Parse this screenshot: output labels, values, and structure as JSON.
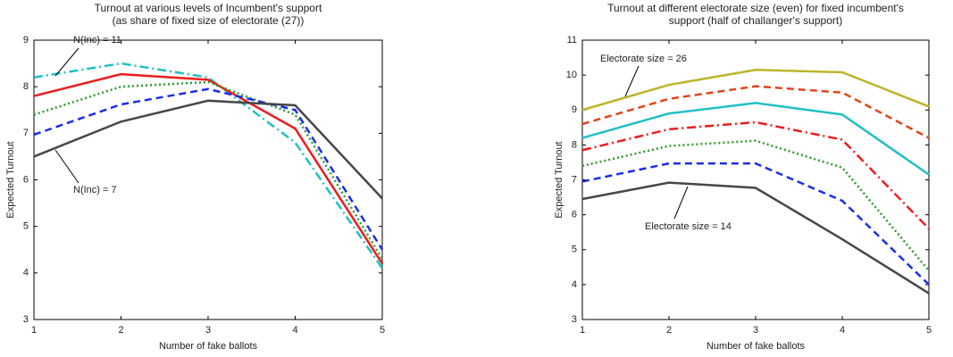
{
  "chart_data": [
    {
      "type": "line",
      "title": [
        "Turnout at various levels of Incumbent's support",
        "(as share of fixed size of electorate (27))"
      ],
      "xlabel": "Number of fake ballots",
      "ylabel": "Expected Turnout",
      "x": [
        1,
        2,
        3,
        4,
        5
      ],
      "xlim": [
        1,
        5
      ],
      "xticks": [
        1,
        2,
        3,
        4,
        5
      ],
      "ylim": [
        3,
        9
      ],
      "yticks": [
        3,
        4,
        5,
        6,
        7,
        8,
        9
      ],
      "series": [
        {
          "color": "#22bfc4",
          "style": "dashdot",
          "values": [
            8.2,
            8.5,
            8.2,
            6.8,
            4.1
          ]
        },
        {
          "color": "#ee1c1c",
          "style": "solid",
          "values": [
            7.8,
            8.27,
            8.15,
            7.1,
            4.2
          ]
        },
        {
          "color": "#2e9b2e",
          "style": "dotted",
          "values": [
            7.4,
            8.0,
            8.1,
            7.4,
            4.3
          ]
        },
        {
          "color": "#1a2ee8",
          "style": "dashed",
          "values": [
            6.97,
            7.62,
            7.95,
            7.5,
            4.5
          ]
        },
        {
          "color": "#474747",
          "style": "solid",
          "values": [
            6.5,
            7.25,
            7.7,
            7.6,
            5.6
          ]
        }
      ],
      "annotations": [
        "N(Inc) = 11",
        "N(Inc) = 7"
      ]
    },
    {
      "type": "line",
      "title": [
        "Turnout at different electorate size (even) for fixed incumbent's",
        "support (half of challanger's support)"
      ],
      "xlabel": "Number of fake ballots",
      "ylabel": "Expected Turnout",
      "x": [
        1,
        2,
        3,
        4,
        5
      ],
      "xlim": [
        1,
        5
      ],
      "xticks": [
        1,
        2,
        3,
        4,
        5
      ],
      "ylim": [
        3,
        11
      ],
      "yticks": [
        3,
        4,
        5,
        6,
        7,
        8,
        9,
        10,
        11
      ],
      "series": [
        {
          "color": "#bdb52a",
          "style": "solid",
          "values": [
            9.0,
            9.72,
            10.15,
            10.08,
            9.1
          ]
        },
        {
          "color": "#e2431a",
          "style": "dashed",
          "values": [
            8.6,
            9.32,
            9.68,
            9.5,
            8.2
          ]
        },
        {
          "color": "#22bfc4",
          "style": "solid",
          "values": [
            8.2,
            8.9,
            9.2,
            8.87,
            7.15
          ]
        },
        {
          "color": "#ee1c1c",
          "style": "dashdot",
          "values": [
            7.85,
            8.45,
            8.65,
            8.15,
            5.6
          ]
        },
        {
          "color": "#2e9b2e",
          "style": "dotted",
          "values": [
            7.4,
            7.97,
            8.12,
            7.35,
            4.4
          ]
        },
        {
          "color": "#1a2ee8",
          "style": "dashed",
          "values": [
            6.95,
            7.47,
            7.47,
            6.4,
            4.0
          ]
        },
        {
          "color": "#474747",
          "style": "solid",
          "values": [
            6.45,
            6.92,
            6.77,
            5.3,
            3.75
          ]
        }
      ],
      "annotations": [
        "Electorate size = 26",
        "Electorate size = 14"
      ]
    }
  ]
}
